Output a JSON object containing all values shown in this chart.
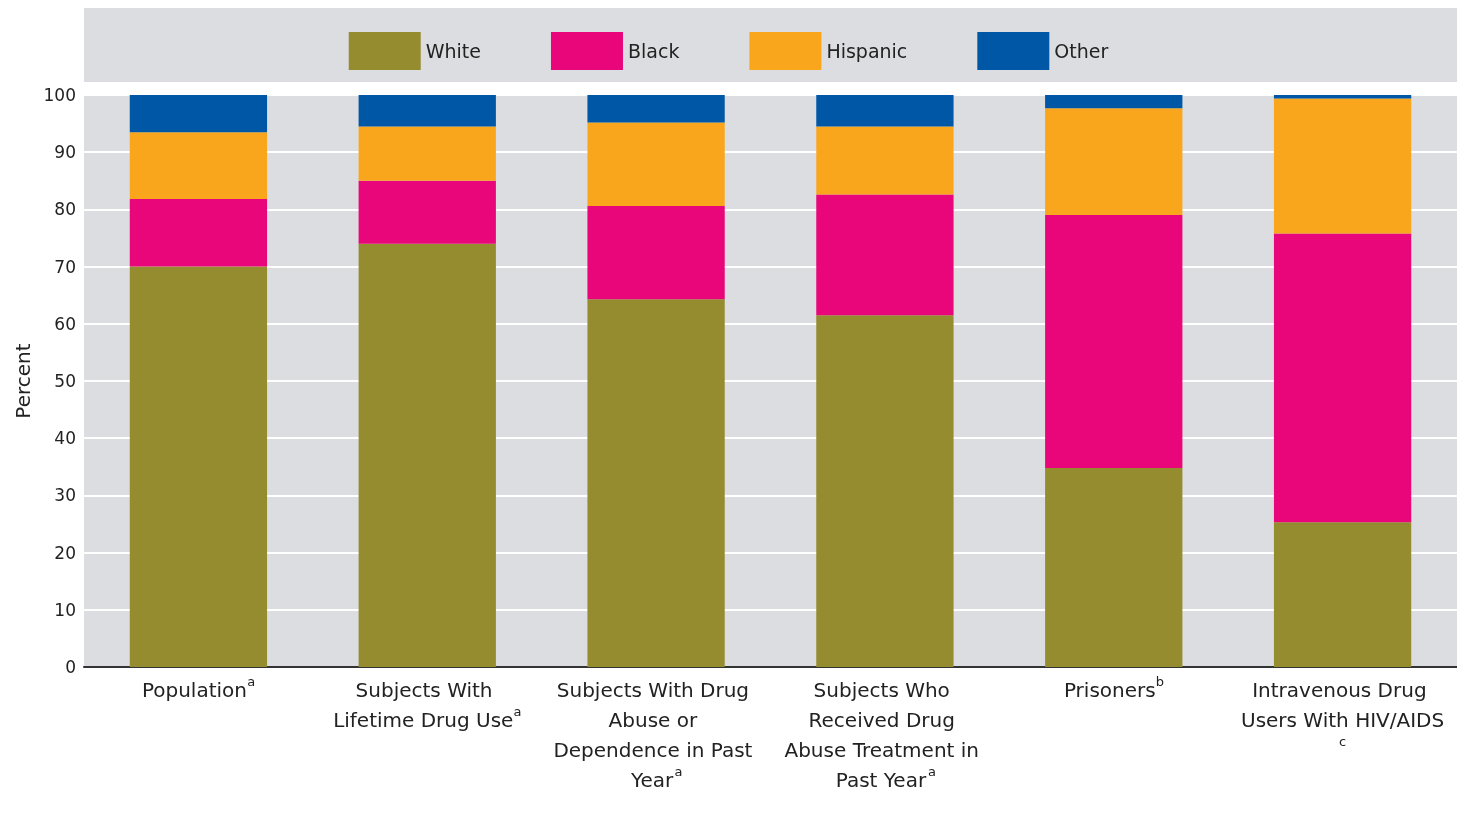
{
  "chart_data": {
    "type": "bar",
    "stacked": true,
    "ylabel": "Percent",
    "categories": [
      "Population$^{a}$",
      "Subjects With Lifetime Drug Use$^{a}$",
      "Subjects With Drug Abuse or Dependence in Past Year$^{a}$",
      "Subjects Who Received Drug Abuse Treatment in Past Year$^{a}$",
      "Prisoners$^{b}$",
      "Intravenous Drug Users With HIV/AIDS$^{c}$"
    ],
    "series": [
      {
        "name": "White",
        "color": "#948c2e",
        "values": [
          70,
          74,
          64.3,
          61.5,
          34.8,
          25.3
        ]
      },
      {
        "name": "Black",
        "color": "#e8067a",
        "values": [
          11.8,
          11,
          16.3,
          21.1,
          44.2,
          50.5
        ]
      },
      {
        "name": "Hispanic",
        "color": "#f9a61c",
        "values": [
          11.7,
          9.5,
          14.6,
          11.9,
          18.7,
          23.6
        ]
      },
      {
        "name": "Other",
        "color": "#0057a6",
        "values": [
          6.5,
          5.5,
          4.8,
          5.5,
          2.3,
          0.6
        ]
      }
    ],
    "ylim": [
      0,
      100
    ],
    "yticks": [
      0,
      10,
      20,
      30,
      40,
      50,
      60,
      70,
      80,
      90,
      100
    ],
    "grid": "y",
    "legend": "top"
  }
}
